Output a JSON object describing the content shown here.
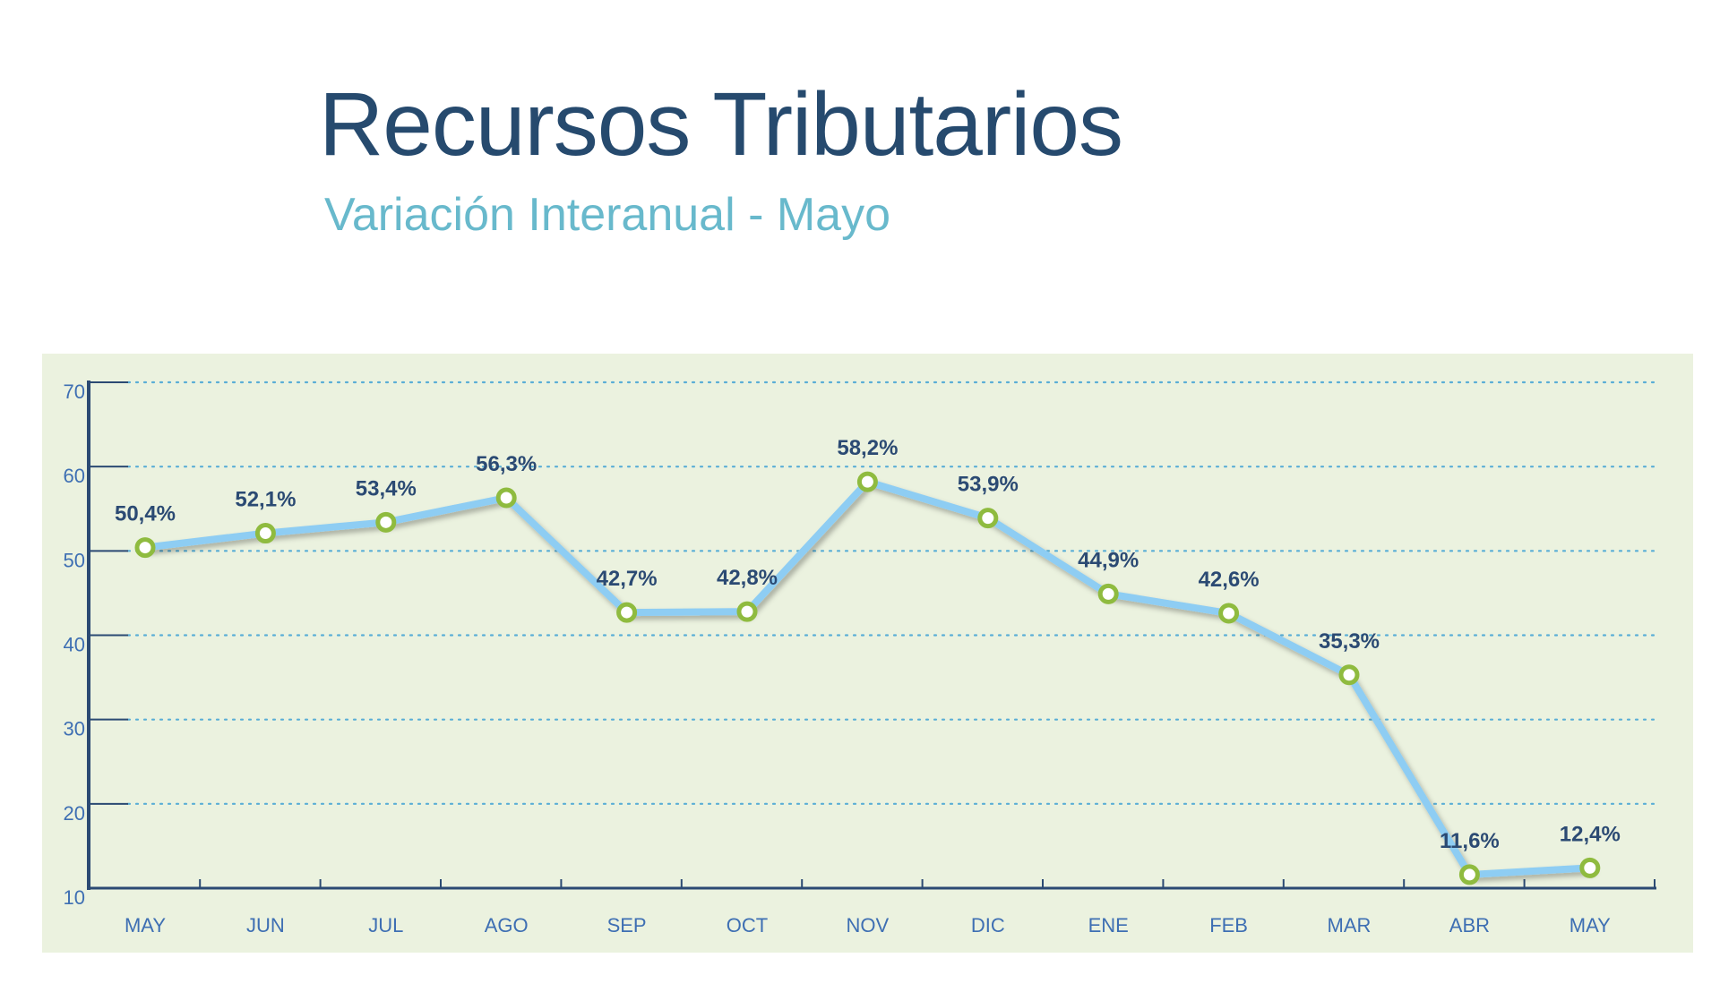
{
  "header": {
    "title": "Recursos Tributarios",
    "subtitle": "Variación Interanual - Mayo"
  },
  "colors": {
    "title": "#264a6e",
    "subtitle": "#68b9cc",
    "panel_background": "#ebf2df",
    "axis": "#2b4a73",
    "grid": "#5aaed6",
    "line": "#8ecdf3",
    "marker": "#8fbb3f",
    "tick_label": "#3e6fb3",
    "data_label": "#2b4a73"
  },
  "chart_data": {
    "type": "line",
    "title": "Recursos Tributarios",
    "subtitle": "Variación Interanual - Mayo",
    "categories": [
      "MAY",
      "JUN",
      "JUL",
      "AGO",
      "SEP",
      "OCT",
      "NOV",
      "DIC",
      "ENE",
      "FEB",
      "MAR",
      "ABR",
      "MAY"
    ],
    "values": [
      50.4,
      52.1,
      53.4,
      56.3,
      42.7,
      42.8,
      58.2,
      53.9,
      44.9,
      42.6,
      35.3,
      11.6,
      12.4
    ],
    "data_labels": [
      "50,4%",
      "52,1%",
      "53,4%",
      "56,3%",
      "42,7%",
      "42,8%",
      "58,2%",
      "53,9%",
      "44,9%",
      "42,6%",
      "35,3%",
      "11,6%",
      "12,4%"
    ],
    "yticks": [
      10,
      20,
      30,
      40,
      50,
      60,
      70
    ],
    "ytick_labels": [
      "10",
      "20",
      "30",
      "40",
      "50",
      "60",
      "70"
    ],
    "ylim": [
      10,
      70
    ],
    "grid": true,
    "grid_style": "dotted",
    "legend": false
  }
}
